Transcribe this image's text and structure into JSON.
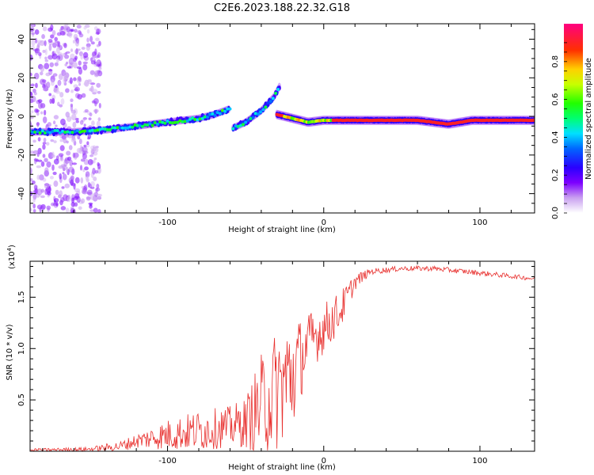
{
  "title": "C2E6.2023.188.22.32.G18",
  "colorbar": {
    "label": "Normalized spectral amplitude",
    "ticks": [
      "0.0",
      "0.2",
      "0.4",
      "0.6",
      "0.8"
    ],
    "tick_values": [
      0.0,
      0.2,
      0.4,
      0.6,
      0.8
    ],
    "range": [
      0.0,
      1.0
    ]
  },
  "chart_data": [
    {
      "type": "heatmap",
      "xlabel": "Height of straight line (km)",
      "ylabel": "Frequency (Hz)",
      "xlim": [
        -188,
        135
      ],
      "ylim": [
        -50,
        48
      ],
      "xticks": [
        -100,
        0,
        100
      ],
      "xtick_labels": [
        "-100",
        "0",
        "100"
      ],
      "yticks": [
        -40,
        -20,
        0,
        20,
        40
      ],
      "ytick_labels": [
        "-40",
        "-20",
        "0",
        "20",
        "40"
      ],
      "ridges": [
        {
          "name_hint": "main",
          "x": [
            -188,
            -160,
            -140,
            -120,
            -100,
            -80,
            -70,
            -60
          ],
          "y": [
            -8,
            -8,
            -7,
            -5,
            -3,
            -1,
            1,
            4
          ],
          "amplitude": 0.35
        },
        {
          "name_hint": "hook",
          "x": [
            -58,
            -50,
            -40,
            -32,
            -28
          ],
          "y": [
            -6,
            -3,
            3,
            10,
            16
          ],
          "amplitude": 0.3
        },
        {
          "name_hint": "flat",
          "x": [
            -30,
            -20,
            -10,
            0,
            20,
            60,
            80,
            95,
            120,
            135
          ],
          "y": [
            1,
            -1,
            -3,
            -2,
            -2,
            -2,
            -4,
            -2,
            -2,
            -2
          ],
          "amplitude": 0.9
        }
      ]
    },
    {
      "type": "line",
      "xlabel": "Height of straight line (km)",
      "ylabel": "SNR (10 * v/v)",
      "multiplier": "(x10",
      "multiplier_exp": "4",
      "multiplier_close": ")",
      "xlim": [
        -188,
        135
      ],
      "ylim": [
        0,
        18500
      ],
      "xticks": [
        -100,
        0,
        100
      ],
      "xtick_labels": [
        "-100",
        "0",
        "100"
      ],
      "yticks": [
        5000,
        10000,
        15000
      ],
      "ytick_labels": [
        "0.5",
        "1.0",
        "1.5"
      ],
      "series_color": "#e8302e",
      "envelope": {
        "x": [
          -188,
          -150,
          -130,
          -120,
          -100,
          -80,
          -60,
          -50,
          -40,
          -30,
          -20,
          -15,
          -10,
          0,
          10,
          20,
          30,
          50,
          70,
          90,
          110,
          135
        ],
        "base": [
          100,
          200,
          500,
          1000,
          1600,
          2000,
          2400,
          2800,
          4500,
          6000,
          7500,
          9000,
          10500,
          12000,
          13500,
          16500,
          17500,
          17800,
          17800,
          17500,
          17200,
          16800
        ],
        "noise": [
          150,
          200,
          500,
          700,
          1500,
          2000,
          2000,
          2500,
          5000,
          6000,
          6000,
          4000,
          3000,
          2500,
          2000,
          800,
          300,
          250,
          250,
          250,
          250,
          200
        ]
      }
    }
  ]
}
